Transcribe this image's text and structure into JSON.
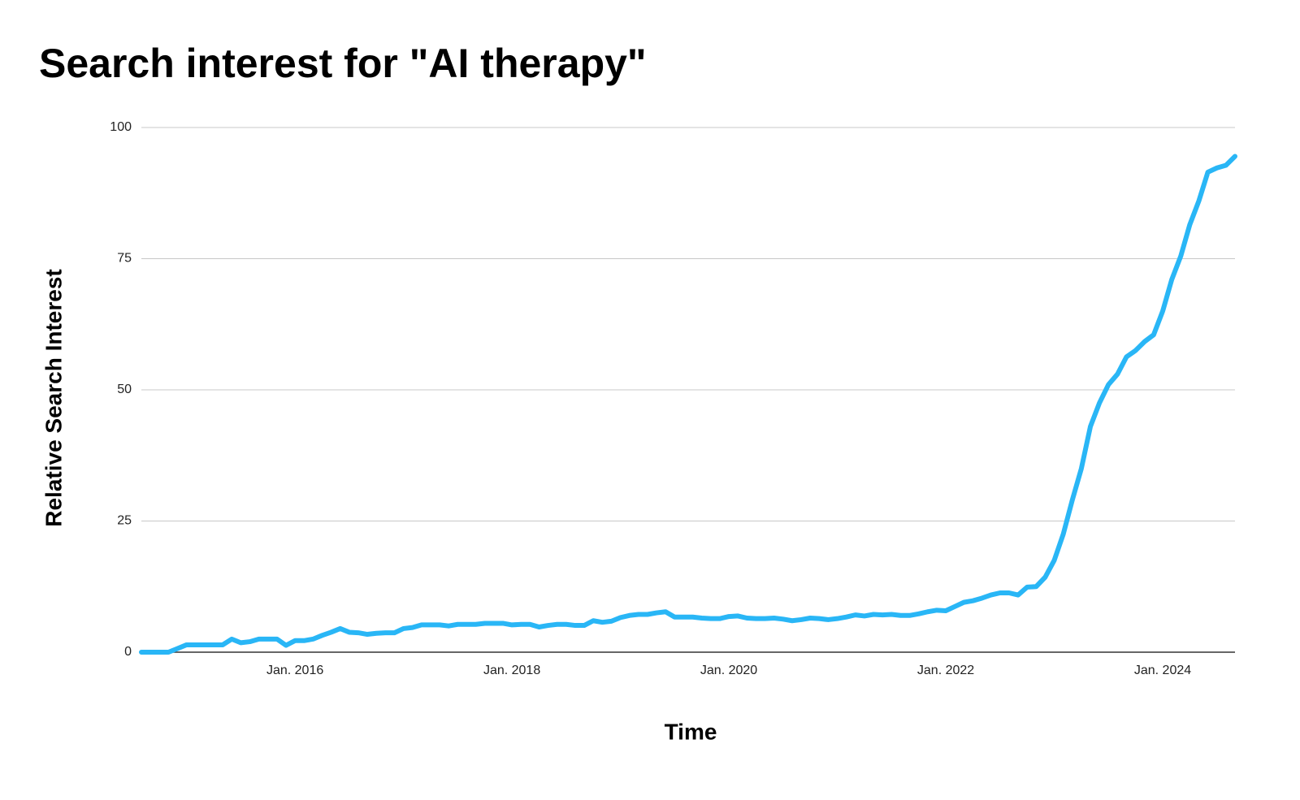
{
  "chart_data": {
    "type": "line",
    "title": "Search interest for \"AI therapy\"",
    "x_label": "Time",
    "y_label": "Relative Search Interest",
    "x": [
      "2014-08",
      "2014-09",
      "2014-10",
      "2014-11",
      "2014-12",
      "2015-01",
      "2015-02",
      "2015-03",
      "2015-04",
      "2015-05",
      "2015-06",
      "2015-07",
      "2015-08",
      "2015-09",
      "2015-10",
      "2015-11",
      "2015-12",
      "2016-01",
      "2016-02",
      "2016-03",
      "2016-04",
      "2016-05",
      "2016-06",
      "2016-07",
      "2016-08",
      "2016-09",
      "2016-10",
      "2016-11",
      "2016-12",
      "2017-01",
      "2017-02",
      "2017-03",
      "2017-04",
      "2017-05",
      "2017-06",
      "2017-07",
      "2017-08",
      "2017-09",
      "2017-10",
      "2017-11",
      "2017-12",
      "2018-01",
      "2018-02",
      "2018-03",
      "2018-04",
      "2018-05",
      "2018-06",
      "2018-07",
      "2018-08",
      "2018-09",
      "2018-10",
      "2018-11",
      "2018-12",
      "2019-01",
      "2019-02",
      "2019-03",
      "2019-04",
      "2019-05",
      "2019-06",
      "2019-07",
      "2019-08",
      "2019-09",
      "2019-10",
      "2019-11",
      "2019-12",
      "2020-01",
      "2020-02",
      "2020-03",
      "2020-04",
      "2020-05",
      "2020-06",
      "2020-07",
      "2020-08",
      "2020-09",
      "2020-10",
      "2020-11",
      "2020-12",
      "2021-01",
      "2021-02",
      "2021-03",
      "2021-04",
      "2021-05",
      "2021-06",
      "2021-07",
      "2021-08",
      "2021-09",
      "2021-10",
      "2021-11",
      "2021-12",
      "2022-01",
      "2022-02",
      "2022-03",
      "2022-04",
      "2022-05",
      "2022-06",
      "2022-07",
      "2022-08",
      "2022-09",
      "2022-10",
      "2022-11",
      "2022-12",
      "2023-01",
      "2023-02",
      "2023-03",
      "2023-04",
      "2023-05",
      "2023-06",
      "2023-07",
      "2023-08",
      "2023-09",
      "2023-10",
      "2023-11",
      "2023-12",
      "2024-01",
      "2024-02",
      "2024-03",
      "2024-04",
      "2024-05",
      "2024-06",
      "2024-07",
      "2024-08",
      "2024-09"
    ],
    "series": [
      {
        "name": "AI therapy",
        "color": "#29b6f6",
        "values": [
          0,
          0,
          0,
          0,
          0.7,
          1.4,
          1.4,
          1.4,
          1.4,
          1.4,
          2.5,
          1.8,
          2.0,
          2.5,
          2.5,
          2.5,
          1.3,
          2.2,
          2.2,
          2.5,
          3.2,
          3.8,
          4.5,
          3.8,
          3.7,
          3.4,
          3.6,
          3.7,
          3.7,
          4.5,
          4.7,
          5.2,
          5.2,
          5.2,
          5.0,
          5.3,
          5.3,
          5.3,
          5.5,
          5.5,
          5.5,
          5.2,
          5.3,
          5.3,
          4.8,
          5.1,
          5.3,
          5.3,
          5.1,
          5.1,
          6.0,
          5.7,
          5.9,
          6.6,
          7.0,
          7.2,
          7.2,
          7.5,
          7.7,
          6.7,
          6.7,
          6.7,
          6.5,
          6.4,
          6.4,
          6.8,
          6.9,
          6.5,
          6.4,
          6.4,
          6.5,
          6.3,
          6.0,
          6.2,
          6.5,
          6.4,
          6.2,
          6.4,
          6.7,
          7.1,
          6.9,
          7.2,
          7.1,
          7.2,
          7.0,
          7.0,
          7.3,
          7.7,
          8.0,
          7.9,
          8.7,
          9.5,
          9.8,
          10.3,
          10.9,
          11.3,
          11.3,
          10.9,
          12.4,
          12.5,
          14.3,
          17.5,
          22.5,
          29,
          35,
          43,
          47.5,
          51,
          53,
          56.3,
          57.5,
          59.2,
          60.5,
          65,
          71,
          75.5,
          81.5,
          86,
          91.5,
          92.3,
          92.8,
          94.5
        ]
      }
    ],
    "xlim": [
      "2014-08",
      "2024-09"
    ],
    "xticks": [
      {
        "value": "2016-01",
        "label": "Jan. 2016"
      },
      {
        "value": "2018-01",
        "label": "Jan. 2018"
      },
      {
        "value": "2020-01",
        "label": "Jan. 2020"
      },
      {
        "value": "2022-01",
        "label": "Jan. 2022"
      },
      {
        "value": "2024-01",
        "label": "Jan. 2024"
      }
    ],
    "ylim": [
      0,
      100
    ],
    "yticks": [
      0,
      25,
      50,
      75,
      100
    ],
    "grid": true
  }
}
